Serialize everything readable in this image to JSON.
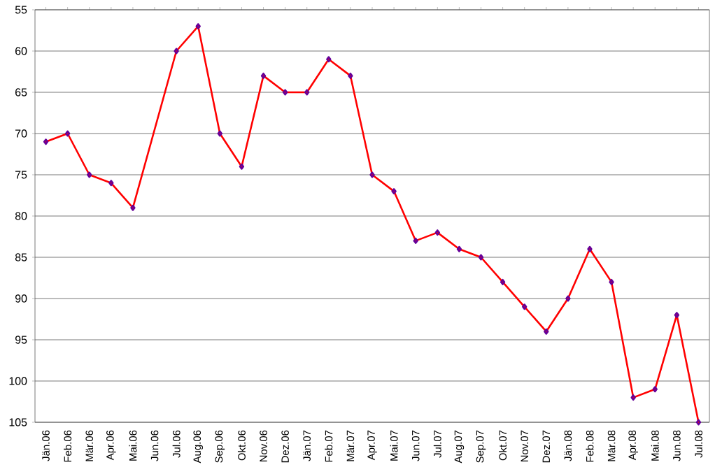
{
  "chart_data": {
    "type": "line",
    "categories": [
      "Jän.06",
      "Feb.06",
      "Mär.06",
      "Apr.06",
      "Mai.06",
      "Jun.06",
      "Jul.06",
      "Aug.06",
      "Sep.06",
      "Okt.06",
      "Nov.06",
      "Dez.06",
      "Jän.07",
      "Feb.07",
      "Mär.07",
      "Apr.07",
      "Mai.07",
      "Jun.07",
      "Jul.07",
      "Aug.07",
      "Sep.07",
      "Okt.07",
      "Nov.07",
      "Dez.07",
      "Jän.08",
      "Feb.08",
      "Mär.08",
      "Apr.08",
      "Mai.08",
      "Jun.08",
      "Jul.08"
    ],
    "values": [
      71,
      70,
      75,
      76,
      79,
      null,
      60,
      57,
      70,
      74,
      63,
      65,
      65,
      61,
      63,
      75,
      77,
      83,
      82,
      84,
      85,
      88,
      91,
      94,
      90,
      84,
      88,
      102,
      101,
      92,
      105
    ],
    "color": "#ff0000",
    "marker": "diamond",
    "line_style": "solid",
    "grid": "y",
    "ylim": [
      105,
      55
    ],
    "yticks": [
      55,
      60,
      65,
      70,
      75,
      80,
      85,
      90,
      95,
      100,
      105
    ]
  }
}
